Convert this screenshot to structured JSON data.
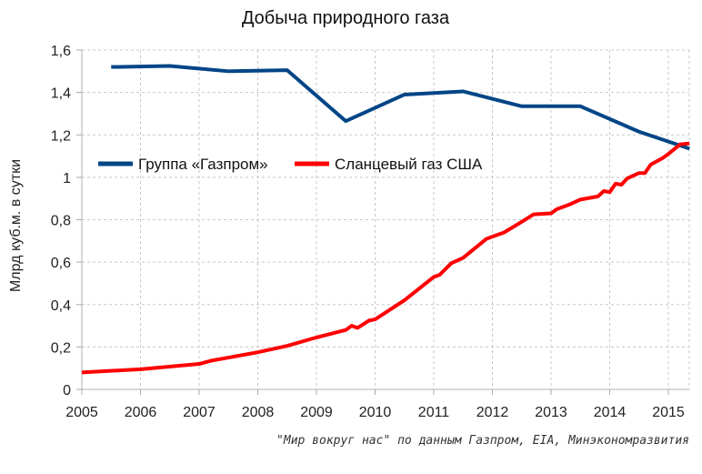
{
  "chart_data": {
    "type": "line",
    "title": "Добыча природного газа",
    "ylabel": "Млрд куб.м. в сутки",
    "xlabel": "",
    "xlim": [
      2005,
      2015.36
    ],
    "ylim": [
      0,
      1.6
    ],
    "x_ticks": [
      "2005",
      "2006",
      "2007",
      "2008",
      "2009",
      "2010",
      "2011",
      "2012",
      "2013",
      "2014",
      "2015"
    ],
    "y_ticks": [
      "0",
      "0,2",
      "0,4",
      "0,6",
      "0,8",
      "1",
      "1,2",
      "1,4",
      "1,6"
    ],
    "grid": true,
    "legend_placement": "center-left",
    "series": [
      {
        "name": "Группа «Газпром»",
        "color": "#004586",
        "x": [
          2005.5,
          2006.5,
          2007.5,
          2008.5,
          2009.5,
          2010.5,
          2011.5,
          2012.5,
          2013.5,
          2014.5,
          2015.36
        ],
        "y": [
          1.52,
          1.525,
          1.5,
          1.505,
          1.265,
          1.39,
          1.405,
          1.335,
          1.335,
          1.215,
          1.135
        ]
      },
      {
        "name": "Сланцевый газ США",
        "color": "#ff0000",
        "x": [
          2005.0,
          2006.0,
          2007.0,
          2007.2,
          2008.0,
          2008.5,
          2009.0,
          2009.5,
          2009.6,
          2009.7,
          2009.9,
          2010.0,
          2010.5,
          2011.0,
          2011.1,
          2011.3,
          2011.5,
          2011.9,
          2012.0,
          2012.2,
          2012.5,
          2012.7,
          2013.0,
          2013.1,
          2013.3,
          2013.5,
          2013.8,
          2013.9,
          2014.0,
          2014.1,
          2014.2,
          2014.3,
          2014.5,
          2014.6,
          2014.7,
          2014.9,
          2015.0,
          2015.2,
          2015.36
        ],
        "y": [
          0.08,
          0.095,
          0.12,
          0.135,
          0.175,
          0.205,
          0.245,
          0.28,
          0.3,
          0.29,
          0.325,
          0.33,
          0.42,
          0.53,
          0.54,
          0.595,
          0.62,
          0.71,
          0.72,
          0.74,
          0.79,
          0.825,
          0.83,
          0.85,
          0.87,
          0.895,
          0.91,
          0.935,
          0.93,
          0.97,
          0.965,
          0.995,
          1.02,
          1.02,
          1.06,
          1.09,
          1.11,
          1.155,
          1.16
        ]
      }
    ],
    "annotation": "\"Мир вокруг нас\" по данным Газпром, EIA, Минэкономразвития"
  }
}
